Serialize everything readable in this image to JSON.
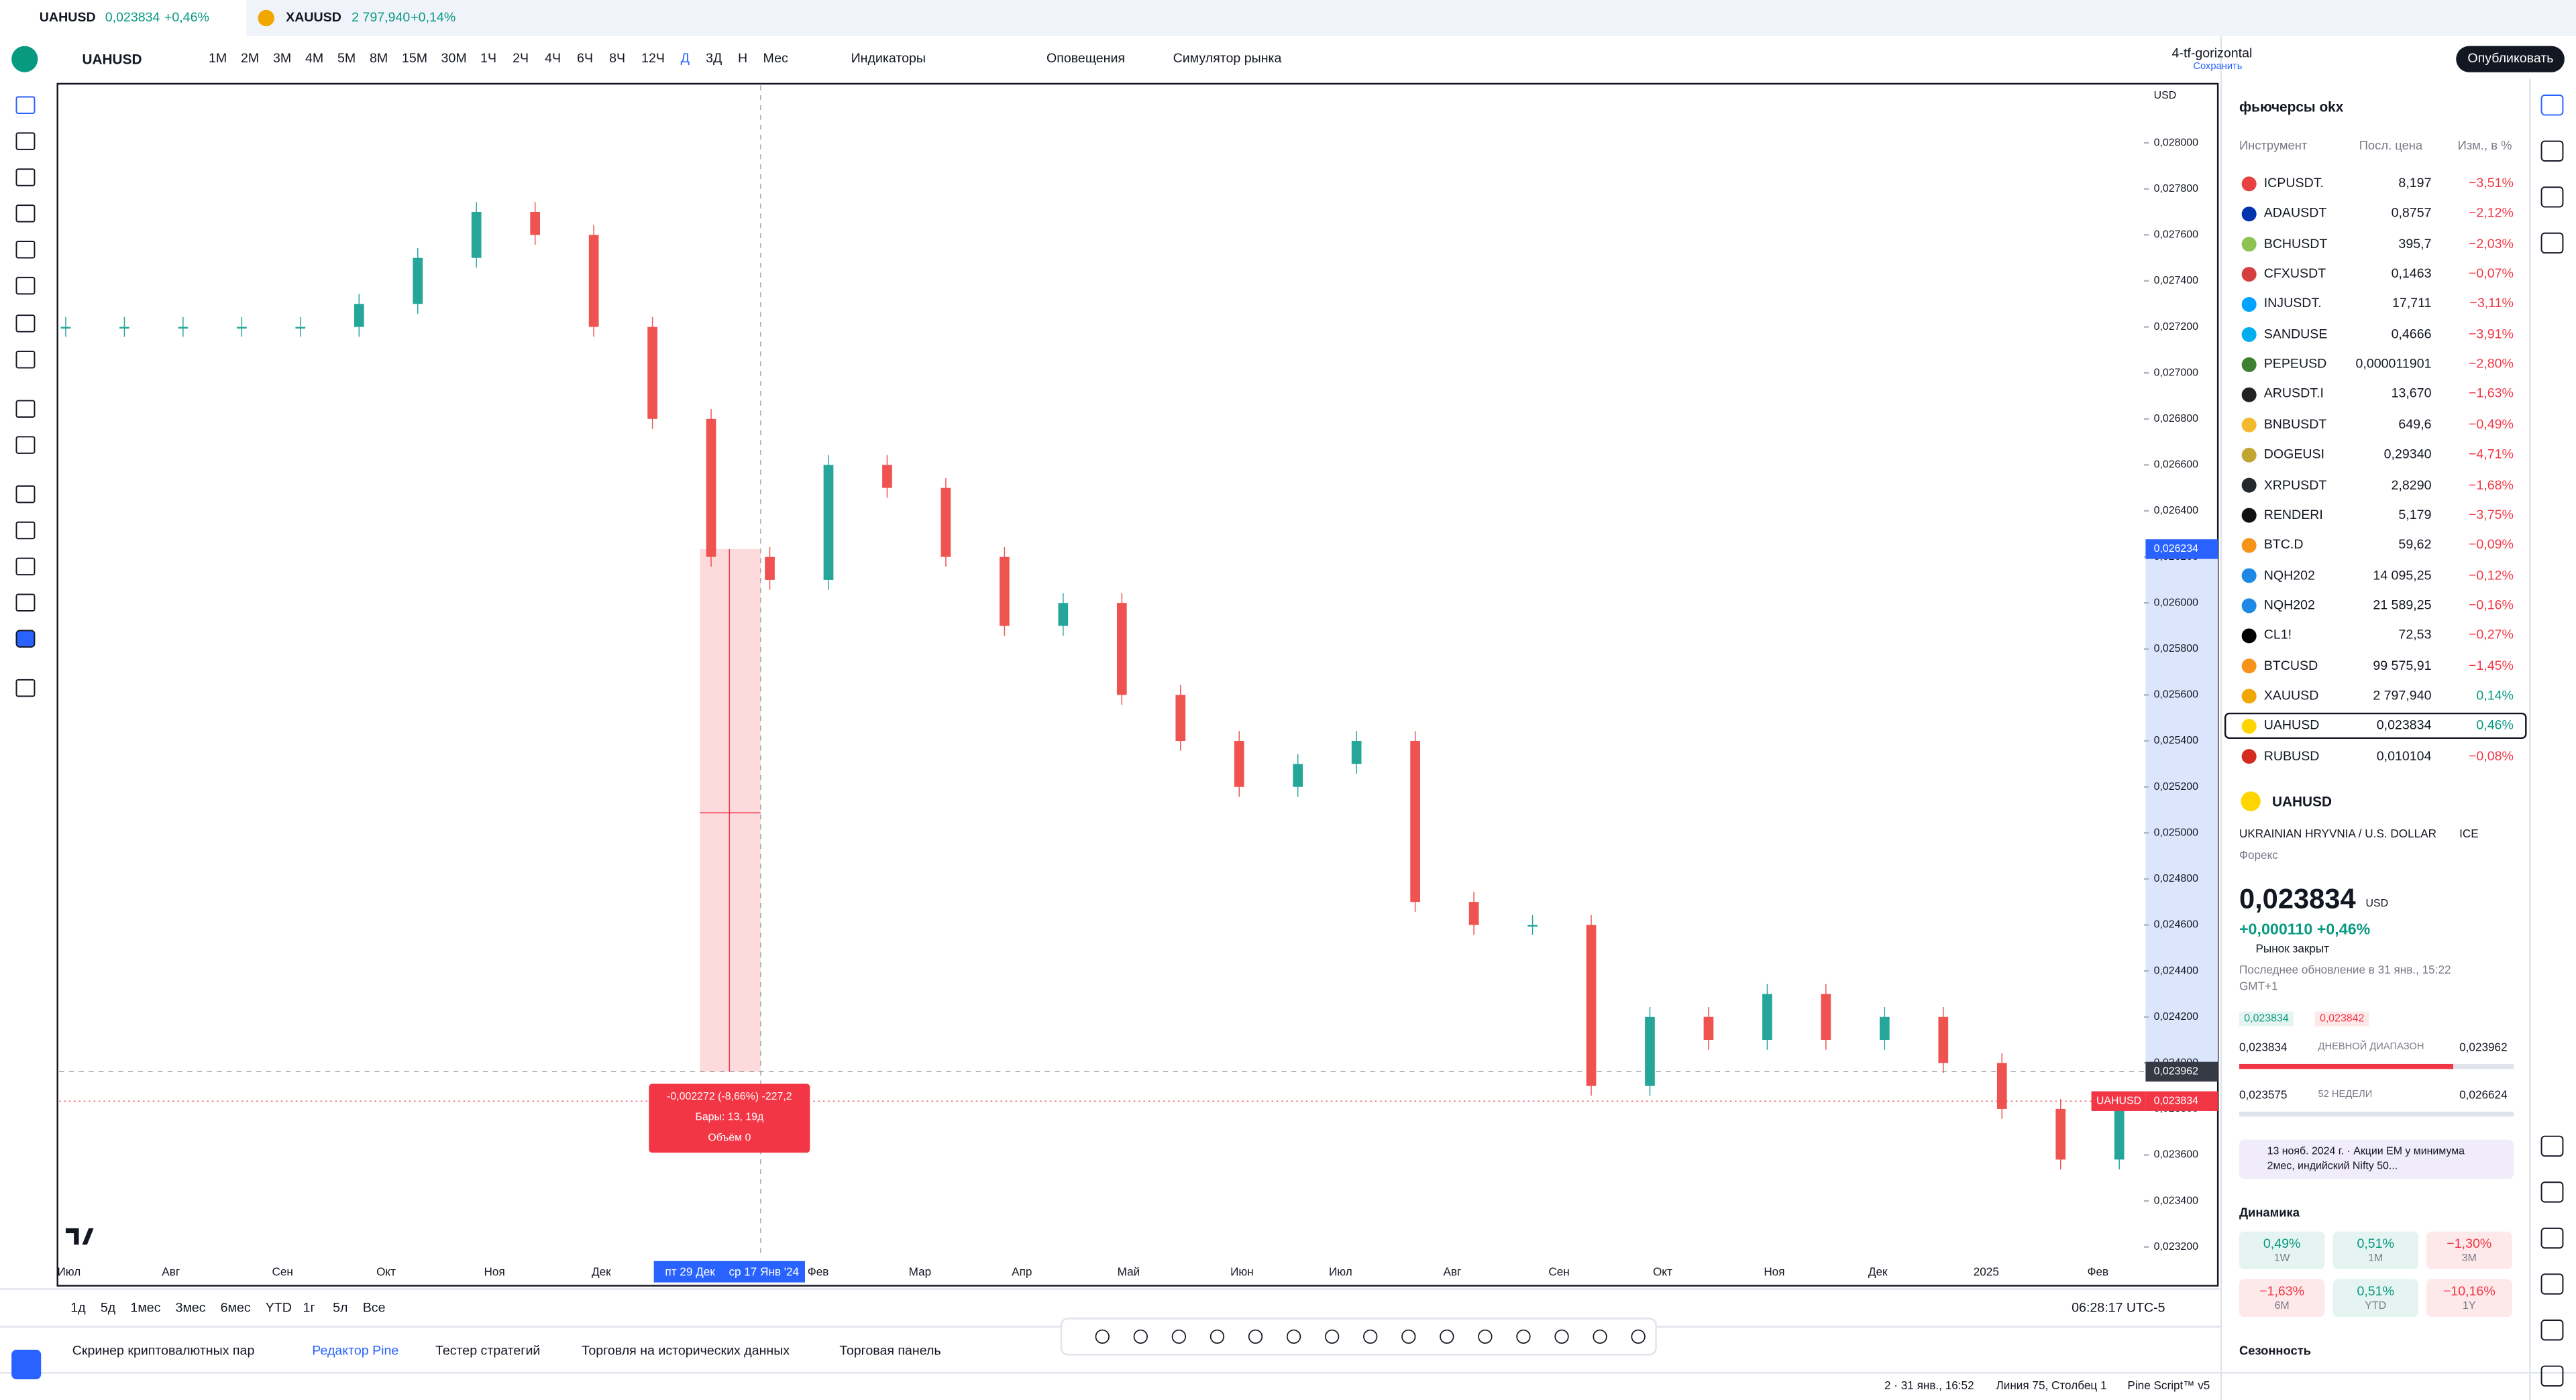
{
  "tabs": [
    {
      "symbol": "UAHUSD",
      "price": "0,023834",
      "change": "+0,46%"
    },
    {
      "symbol": "XAUUSD",
      "price": "2 797,940",
      "change": "+0,14%"
    }
  ],
  "toolbar": {
    "symbol": "UAHUSD",
    "intervals": [
      "1М",
      "2М",
      "3М",
      "4М",
      "5М",
      "8М",
      "15М",
      "30М",
      "1Ч",
      "2Ч",
      "4Ч",
      "6Ч",
      "8Ч",
      "12Ч",
      "Д",
      "3Д",
      "Н",
      "Мес"
    ],
    "indicators": "Индикаторы",
    "alerts": "Оповещения",
    "replay": "Симулятор рынка",
    "layout": "4-tf-gorizontal",
    "saved": "Сохранить",
    "publish": "Опубликовать"
  },
  "chart": {
    "currency": "USD",
    "ylim": [
      0.02316,
      0.02825
    ],
    "yticks": [
      {
        "value": 0.028,
        "label": "0,028000"
      },
      {
        "value": 0.0278,
        "label": "0,027800"
      },
      {
        "value": 0.0276,
        "label": "0,027600"
      },
      {
        "value": 0.0274,
        "label": "0,027400"
      },
      {
        "value": 0.0272,
        "label": "0,027200"
      },
      {
        "value": 0.027,
        "label": "0,027000"
      },
      {
        "value": 0.0268,
        "label": "0,026800"
      },
      {
        "value": 0.0266,
        "label": "0,026600"
      },
      {
        "value": 0.0264,
        "label": "0,026400"
      },
      {
        "value": 0.0262,
        "label": "0,026200"
      },
      {
        "value": 0.026,
        "label": "0,026000"
      },
      {
        "value": 0.0258,
        "label": "0,025800"
      },
      {
        "value": 0.0256,
        "label": "0,025600"
      },
      {
        "value": 0.0254,
        "label": "0,025400"
      },
      {
        "value": 0.0252,
        "label": "0,025200"
      },
      {
        "value": 0.025,
        "label": "0,025000"
      },
      {
        "value": 0.0248,
        "label": "0,024800"
      },
      {
        "value": 0.0246,
        "label": "0,024600"
      },
      {
        "value": 0.0244,
        "label": "0,024400"
      },
      {
        "value": 0.0242,
        "label": "0,024200"
      },
      {
        "value": 0.024,
        "label": "0,024000"
      },
      {
        "value": 0.0238,
        "label": "0,023800"
      },
      {
        "value": 0.0236,
        "label": "0,023600"
      },
      {
        "value": 0.0234,
        "label": "0,023400"
      },
      {
        "value": 0.0232,
        "label": "0,023200"
      }
    ],
    "xlabels": [
      "Июл",
      "Авг",
      "Сен",
      "Окт",
      "Ноя",
      "Дек",
      "Фев",
      "Мар",
      "Апр",
      "Май",
      "Июн",
      "Июл",
      "Авг",
      "Сен",
      "Окт",
      "Ноя",
      "Дек",
      "2025",
      "Фев"
    ],
    "crosshair_dates": [
      "пт 29 Дек",
      "ср 17 Янв '24"
    ],
    "closes": [
      0.0272,
      0.0272,
      0.0272,
      0.0272,
      0.0272,
      0.0273,
      0.0275,
      0.0277,
      0.0276,
      0.0272,
      0.0268,
      0.0262,
      0.0261,
      0.0266,
      0.0265,
      0.0262,
      0.0259,
      0.026,
      0.0256,
      0.0254,
      0.0252,
      0.0253,
      0.0254,
      0.0247,
      0.0246,
      0.0246,
      0.0239,
      0.0242,
      0.0241,
      0.0243,
      0.0241,
      0.0242,
      0.024,
      0.0238,
      0.02358,
      0.023834
    ],
    "price_tags": {
      "measure_top": {
        "value": 0.026234,
        "label": "0,026234"
      },
      "crosshair": {
        "value": 0.023962,
        "label": "0,023962"
      },
      "last": {
        "symbol": "UAHUSD",
        "value": 0.023834,
        "label": "0,023834"
      }
    },
    "measure": [
      "-0,002272 (-8,66%) -227,2",
      "Бары: 13, 19д",
      "Объём 0"
    ],
    "ranges": [
      "1д",
      "5д",
      "1мес",
      "3мес",
      "6мес",
      "YTD",
      "1г",
      "5л",
      "Все"
    ],
    "clock": "06:28:17 UTC-5"
  },
  "bottom_tabs": [
    "Скринер криптовалютных пар",
    "Редактор Pine",
    "Тестер стратегий",
    "Торговля на исторических данных",
    "Торговая панель"
  ],
  "status": [
    "2 · 31 янв., 16:52",
    "Линия 75, Столбец 1",
    "Pine Script™ v5"
  ],
  "watchlist": {
    "title": "фьючерсы okx",
    "columns": [
      "Инструмент",
      "Посл. цена",
      "Изм., в %"
    ],
    "rows": [
      [
        "ICPUSDT.",
        "8,197",
        "−3,51%"
      ],
      [
        "ADAUSDT",
        "0,8757",
        "−2,12%"
      ],
      [
        "BCHUSDT",
        "395,7",
        "−2,03%"
      ],
      [
        "CFXUSDT",
        "0,1463",
        "−0,07%"
      ],
      [
        "INJUSDT.",
        "17,711",
        "−3,11%"
      ],
      [
        "SANDUSE",
        "0,4666",
        "−3,91%"
      ],
      [
        "PEPEUSD",
        "0,000011901",
        "−2,80%"
      ],
      [
        "ARUSDT.I",
        "13,670",
        "−1,63%"
      ],
      [
        "BNBUSDT",
        "649,6",
        "−0,49%"
      ],
      [
        "DOGEUSI",
        "0,29340",
        "−4,71%"
      ],
      [
        "XRPUSDT",
        "2,8290",
        "−1,68%"
      ],
      [
        "RENDERI",
        "5,179",
        "−3,75%"
      ],
      [
        "BTC.D",
        "59,62",
        "−0,09%"
      ],
      [
        "NQH202",
        "14 095,25",
        "−0,12%"
      ],
      [
        "NQH202",
        "21 589,25",
        "−0,16%"
      ],
      [
        "CL1!",
        "72,53",
        "−0,27%"
      ],
      [
        "BTCUSD",
        "99 575,91",
        "−1,45%"
      ],
      [
        "XAUUSD",
        "2 797,940",
        "0,14%"
      ],
      [
        "UAHUSD",
        "0,023834",
        "0,46%"
      ],
      [
        "RUBUSD",
        "0,010104",
        "−0,08%"
      ]
    ]
  },
  "details": {
    "symbol": "UAHUSD",
    "name": "UKRAINIAN HRYVNIA / U.S. DOLLAR",
    "exchange": "ICE",
    "type": "Форекс",
    "price": "0,023834",
    "unit": "USD",
    "change": "+0,000110 +0,46%",
    "status": "Рынок закрыт",
    "updated": "Последнее обновление в 31 янв., 15:22 GMT+1",
    "bid": "0,023834",
    "ask": "0,023842",
    "day": {
      "low": "0,023834",
      "label": "ДНЕВНОЙ ДИАПАЗОН",
      "high": "0,023962"
    },
    "year": {
      "low": "0,023575",
      "label": "52 НЕДЕЛИ",
      "high": "0,026624"
    },
    "news": "13 нояб. 2024 г. · Акции EM у минимума 2мес, индийский Nifty 50...",
    "dynamics": "Динамика",
    "perf": [
      {
        "value": "0,49%",
        "period": "1W"
      },
      {
        "value": "0,51%",
        "period": "1M"
      },
      {
        "value": "−1,30%",
        "period": "3M"
      },
      {
        "value": "−1,63%",
        "period": "6M"
      },
      {
        "value": "0,51%",
        "period": "YTD"
      },
      {
        "value": "−10,16%",
        "period": "1Y"
      }
    ],
    "seasonality": "Сезонность"
  }
}
